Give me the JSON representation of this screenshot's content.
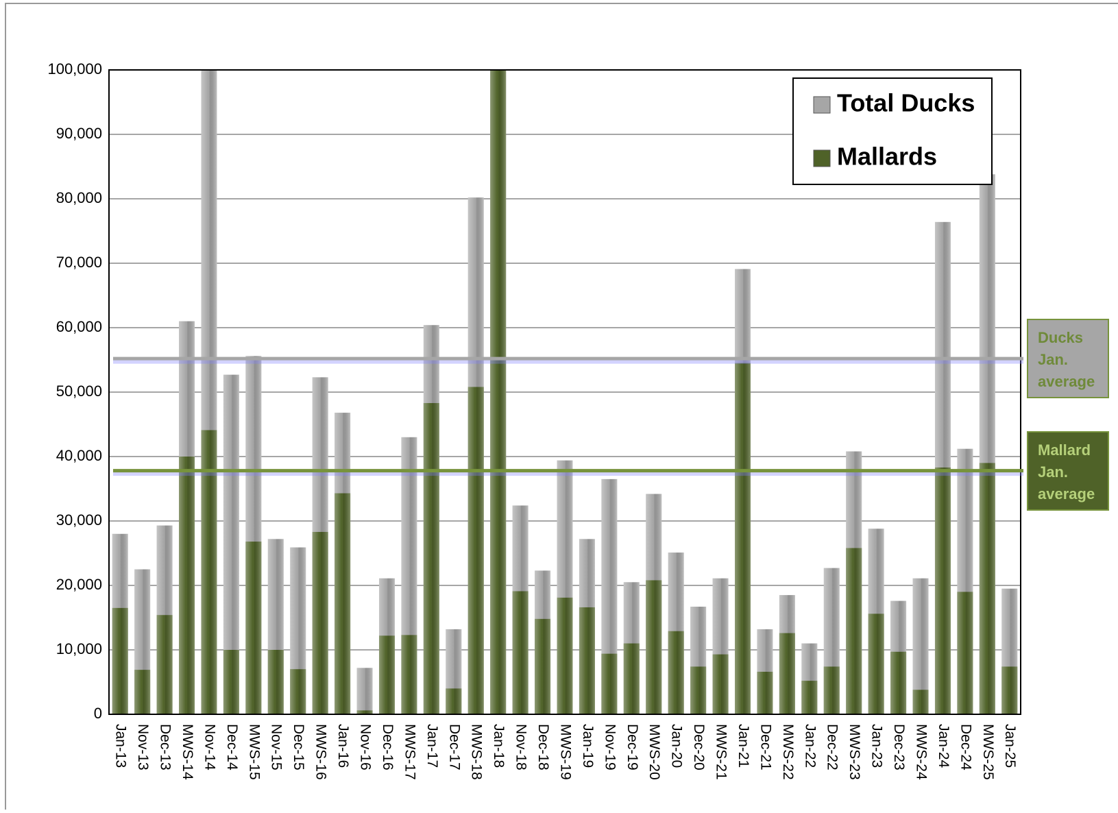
{
  "chart_data": {
    "type": "bar",
    "categories": [
      "Jan-13",
      "Nov-13",
      "Dec-13",
      "MWS-14",
      "Nov-14",
      "Dec-14",
      "MWS-15",
      "Nov-15",
      "Dec-15",
      "MWS-16",
      "Jan-16",
      "Nov-16",
      "Dec-16",
      "MWS-17",
      "Jan-17",
      "Dec-17",
      "MWS-18",
      "Jan-18",
      "Nov-18",
      "Dec-18",
      "MWS-19",
      "Jan-19",
      "Nov-19",
      "Dec-19",
      "MWS-20",
      "Jan-20",
      "Dec-20",
      "MWS-21",
      "Jan-21",
      "Dec-21",
      "MWS-22",
      "Jan-22",
      "Dec-22",
      "MWS-23",
      "Jan-23",
      "Dec-23",
      "MWS-24",
      "Jan-24",
      "Dec-24",
      "MWS-25",
      "Jan-25"
    ],
    "series": [
      {
        "name": "Total Ducks",
        "color": "#a6a6a6",
        "values": [
          28000,
          22500,
          29300,
          61000,
          100000,
          52700,
          55600,
          27200,
          25900,
          52300,
          46800,
          7200,
          21100,
          43000,
          60400,
          13200,
          80200,
          100000,
          32400,
          22300,
          39400,
          27200,
          36500,
          20500,
          34200,
          25100,
          16700,
          21100,
          69100,
          13200,
          18500,
          11000,
          22700,
          40800,
          28800,
          17600,
          21100,
          76400,
          41200,
          83800,
          19500
        ]
      },
      {
        "name": "Mallards",
        "color": "#4f6228",
        "values": [
          16500,
          6900,
          15400,
          40000,
          44100,
          10000,
          26800,
          10000,
          7000,
          28300,
          34300,
          600,
          12200,
          12300,
          48300,
          4000,
          50800,
          100000,
          19100,
          14800,
          18100,
          16600,
          9400,
          11000,
          20800,
          12900,
          7400,
          9300,
          54500,
          6600,
          12600,
          5200,
          7400,
          25800,
          15600,
          9700,
          3800,
          38300,
          19000,
          39000,
          7400
        ]
      }
    ],
    "ylim": [
      0,
      100000
    ],
    "yticks": [
      0,
      {
        "value": 10000,
        "label": "10,000"
      },
      {
        "value": 20000,
        "label": "20,000"
      },
      {
        "value": 30000,
        "label": "30,000"
      },
      {
        "value": 40000,
        "label": "40,000"
      },
      {
        "value": 50000,
        "label": "50,000"
      },
      {
        "value": 60000,
        "label": "60,000"
      },
      {
        "value": 70000,
        "label": "70,000"
      },
      {
        "value": 80000,
        "label": "80,000"
      },
      {
        "value": 90000,
        "label": "90,000"
      },
      {
        "value": 100000,
        "label": "100,000"
      }
    ],
    "grid": true,
    "legend": "upper right",
    "reference_lines": [
      {
        "label": "Ducks Jan. average",
        "value": 55200,
        "color": "#a6a6a6"
      },
      {
        "label": "Mallard Jan. average",
        "value": 37800,
        "color": "#77933c"
      }
    ]
  }
}
